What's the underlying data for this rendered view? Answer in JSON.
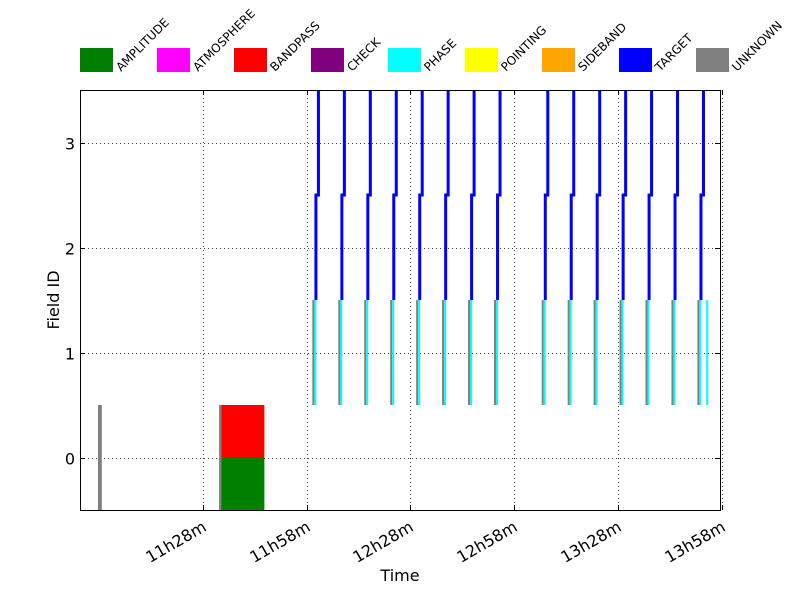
{
  "chart_data": {
    "type": "timeline",
    "xlabel": "Time",
    "ylabel": "Field ID",
    "x_ticks": [
      "11h28m",
      "11h58m",
      "12h28m",
      "12h58m",
      "13h28m",
      "13h58m"
    ],
    "x_tick_minutes": [
      688,
      718,
      748,
      778,
      808,
      838
    ],
    "xlim_minutes": [
      652.5,
      837.5
    ],
    "y_ticks": [
      "0",
      "1",
      "2",
      "3"
    ],
    "y_tick_values": [
      0,
      1,
      2,
      3
    ],
    "ylim": [
      -0.5,
      3.5
    ],
    "grid": true,
    "legend": [
      {
        "label": "AMPLITUDE",
        "color": "#008000"
      },
      {
        "label": "ATMOSPHERE",
        "color": "#ff00ff"
      },
      {
        "label": "BANDPASS",
        "color": "#ff0000"
      },
      {
        "label": "CHECK",
        "color": "#800080"
      },
      {
        "label": "PHASE",
        "color": "#00ffff"
      },
      {
        "label": "POINTING",
        "color": "#ffff00"
      },
      {
        "label": "SIDEBAND",
        "color": "#ffa500"
      },
      {
        "label": "TARGET",
        "color": "#0000ff"
      },
      {
        "label": "UNKNOWN",
        "color": "#808080"
      }
    ],
    "blocks": [
      {
        "intent": "UNKNOWN",
        "field": 0,
        "start": 657.7,
        "end": 658.8
      },
      {
        "intent": "UNKNOWN",
        "field": 0,
        "start": 692.7,
        "end": 693.4
      },
      {
        "intent": "BANDPASS",
        "field": 0,
        "start": 693.4,
        "end": 705.8
      },
      {
        "intent": "AMPLITUDE",
        "field": 0,
        "start": 693.4,
        "end": 705.8
      }
    ],
    "phase_cal_times": [
      720.1,
      727.6,
      735.1,
      742.6,
      750.1,
      757.6,
      765.1,
      772.6,
      786.4,
      793.9,
      801.4,
      808.9,
      816.4,
      823.9,
      831.4
    ],
    "phase_cal_field": 1,
    "extra_phase_cal_times": [
      833.5
    ],
    "target_fields": [
      2,
      3
    ],
    "target_start_times": [
      720.7,
      728.2,
      735.7,
      743.2,
      750.7,
      758.2,
      765.7,
      773.2,
      787.0,
      794.5,
      802.0,
      809.5,
      817.0,
      824.5,
      832.0
    ]
  }
}
